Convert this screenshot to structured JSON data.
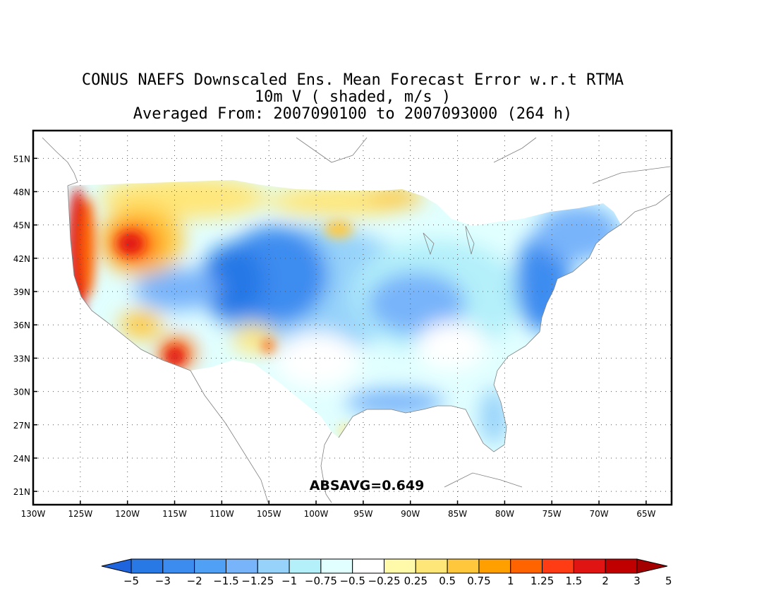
{
  "title": {
    "line1": "CONUS NAEFS Downscaled Ens. Mean Forecast Error w.r.t RTMA",
    "line2": "10m V ( shaded, m/s )",
    "line3": "Averaged From: 2007090100 to 2007093000 (264 h)"
  },
  "annotation": "ABSAVG=0.649",
  "lat_labels": [
    "51N",
    "48N",
    "45N",
    "42N",
    "39N",
    "36N",
    "33N",
    "30N",
    "27N",
    "24N",
    "21N"
  ],
  "lat_values": [
    51,
    48,
    45,
    42,
    39,
    36,
    33,
    30,
    27,
    24,
    21
  ],
  "lon_labels": [
    "130W",
    "125W",
    "120W",
    "115W",
    "110W",
    "105W",
    "100W",
    "95W",
    "90W",
    "85W",
    "80W",
    "75W",
    "70W",
    "65W"
  ],
  "lon_values": [
    -130,
    -125,
    -120,
    -115,
    -110,
    -105,
    -100,
    -95,
    -90,
    -85,
    -80,
    -75,
    -70,
    -65
  ],
  "colorbar": {
    "labels": [
      "-5",
      "-3",
      "-2",
      "-1.5",
      "-1.25",
      "-1",
      "-0.75",
      "-0.5",
      "-0.25",
      "0.25",
      "0.5",
      "0.75",
      "1",
      "1.25",
      "1.5",
      "2",
      "3",
      "5"
    ],
    "colors": [
      "#1e64dc",
      "#2878e6",
      "#3c8cf0",
      "#50a0f5",
      "#78b4fa",
      "#96d2fa",
      "#b4f0fa",
      "#e1ffff",
      "#ffffff",
      "#fffaaa",
      "#ffe678",
      "#ffc83c",
      "#ffa000",
      "#ff6400",
      "#ff3c14",
      "#e11414",
      "#c00000",
      "#a50000"
    ]
  },
  "field_regions": [
    {
      "name": "pacific-coast-red",
      "lon": -124.5,
      "lat": 43.5,
      "color": "#e11414"
    },
    {
      "name": "oregon-orange",
      "lon": -121,
      "lat": 43,
      "color": "#ff6400"
    },
    {
      "name": "northern-rockies-yellow",
      "lon": -113,
      "lat": 47,
      "color": "#ffc83c"
    },
    {
      "name": "northern-plains-yellow",
      "lon": -98,
      "lat": 46.5,
      "color": "#ffe678"
    },
    {
      "name": "central-rockies-blue",
      "lon": -105.5,
      "lat": 40,
      "color": "#2878e6"
    },
    {
      "name": "great-basin-blue",
      "lon": -113,
      "lat": 39,
      "color": "#50a0f5"
    },
    {
      "name": "arizona-red",
      "lon": -113.5,
      "lat": 33,
      "color": "#e11414"
    },
    {
      "name": "midwest-blue",
      "lon": -90,
      "lat": 39,
      "color": "#78b4fa"
    },
    {
      "name": "east-coast-blue",
      "lon": -76,
      "lat": 39,
      "color": "#3c8cf0"
    },
    {
      "name": "northeast-blue",
      "lon": -72,
      "lat": 43.5,
      "color": "#78b4fa"
    },
    {
      "name": "gulf-coast-blue",
      "lon": -90,
      "lat": 30,
      "color": "#78b4fa"
    },
    {
      "name": "florida-blue",
      "lon": -81.5,
      "lat": 28,
      "color": "#96d2fa"
    },
    {
      "name": "texas-light",
      "lon": -99,
      "lat": 31,
      "color": "#b4f0fa"
    }
  ]
}
